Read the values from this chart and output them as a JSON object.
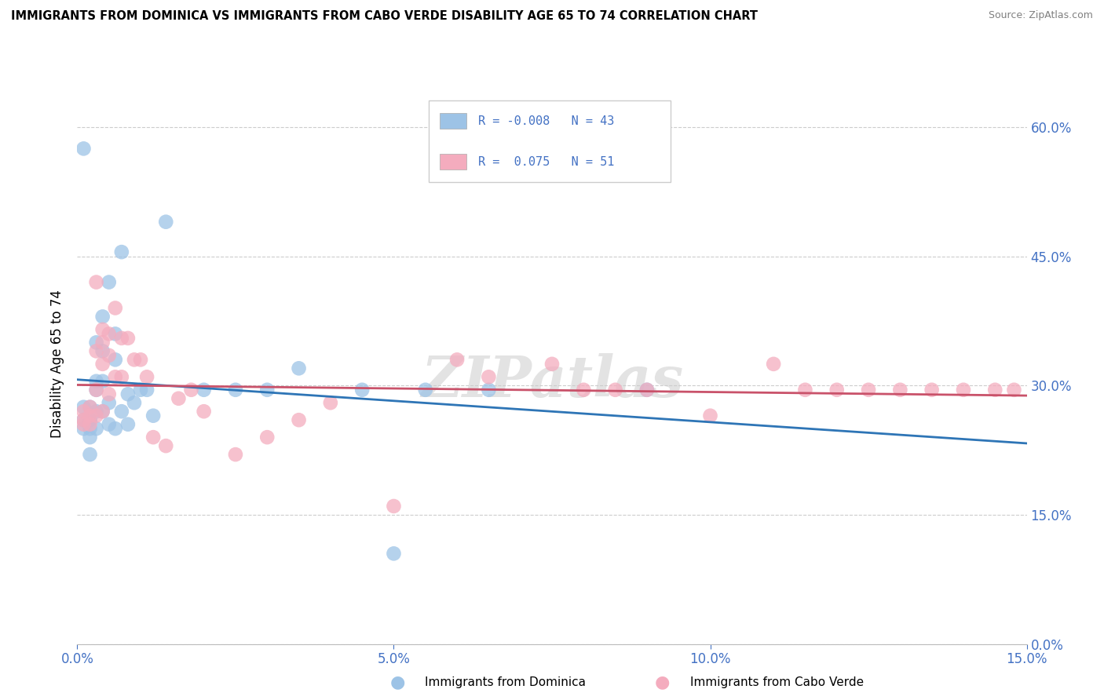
{
  "title": "IMMIGRANTS FROM DOMINICA VS IMMIGRANTS FROM CABO VERDE DISABILITY AGE 65 TO 74 CORRELATION CHART",
  "source": "Source: ZipAtlas.com",
  "xlabel_left": "Immigrants from Dominica",
  "xlabel_right": "Immigrants from Cabo Verde",
  "ylabel": "Disability Age 65 to 74",
  "xmin": 0.0,
  "xmax": 0.15,
  "ymin": 0.0,
  "ymax": 0.65,
  "xticks": [
    0.0,
    0.05,
    0.1,
    0.15
  ],
  "yticks": [
    0.0,
    0.15,
    0.3,
    0.45,
    0.6
  ],
  "ytick_labels": [
    "0.0%",
    "15.0%",
    "30.0%",
    "45.0%",
    "60.0%"
  ],
  "xtick_labels": [
    "0.0%",
    "5.0%",
    "10.0%",
    "15.0%"
  ],
  "color_blue": "#9DC3E6",
  "color_pink": "#F4ACBE",
  "line_color_blue": "#2E75B6",
  "line_color_pink": "#C9526A",
  "watermark": "ZIPatlas",
  "tick_color": "#4472C4",
  "legend_text_color": "#4472C4",
  "dominica_x": [
    0.001,
    0.001,
    0.001,
    0.001,
    0.002,
    0.002,
    0.002,
    0.002,
    0.002,
    0.002,
    0.003,
    0.003,
    0.003,
    0.003,
    0.003,
    0.004,
    0.004,
    0.004,
    0.004,
    0.005,
    0.005,
    0.005,
    0.006,
    0.006,
    0.006,
    0.007,
    0.007,
    0.008,
    0.008,
    0.009,
    0.01,
    0.011,
    0.012,
    0.014,
    0.02,
    0.025,
    0.03,
    0.035,
    0.045,
    0.05,
    0.055,
    0.065,
    0.09
  ],
  "dominica_y": [
    0.575,
    0.275,
    0.25,
    0.26,
    0.26,
    0.275,
    0.26,
    0.25,
    0.24,
    0.22,
    0.35,
    0.305,
    0.295,
    0.27,
    0.25,
    0.38,
    0.34,
    0.305,
    0.27,
    0.42,
    0.28,
    0.255,
    0.36,
    0.33,
    0.25,
    0.455,
    0.27,
    0.29,
    0.255,
    0.28,
    0.295,
    0.295,
    0.265,
    0.49,
    0.295,
    0.295,
    0.295,
    0.32,
    0.295,
    0.105,
    0.295,
    0.295,
    0.295
  ],
  "caboverde_x": [
    0.001,
    0.001,
    0.001,
    0.002,
    0.002,
    0.002,
    0.003,
    0.003,
    0.003,
    0.003,
    0.004,
    0.004,
    0.004,
    0.004,
    0.005,
    0.005,
    0.005,
    0.006,
    0.006,
    0.007,
    0.007,
    0.008,
    0.009,
    0.01,
    0.011,
    0.012,
    0.014,
    0.016,
    0.018,
    0.02,
    0.025,
    0.03,
    0.035,
    0.04,
    0.05,
    0.06,
    0.065,
    0.075,
    0.08,
    0.085,
    0.09,
    0.1,
    0.11,
    0.115,
    0.12,
    0.125,
    0.13,
    0.135,
    0.14,
    0.145,
    0.148
  ],
  "caboverde_y": [
    0.27,
    0.26,
    0.255,
    0.275,
    0.265,
    0.255,
    0.42,
    0.34,
    0.295,
    0.265,
    0.365,
    0.35,
    0.325,
    0.27,
    0.36,
    0.335,
    0.29,
    0.39,
    0.31,
    0.355,
    0.31,
    0.355,
    0.33,
    0.33,
    0.31,
    0.24,
    0.23,
    0.285,
    0.295,
    0.27,
    0.22,
    0.24,
    0.26,
    0.28,
    0.16,
    0.33,
    0.31,
    0.325,
    0.295,
    0.295,
    0.295,
    0.265,
    0.325,
    0.295,
    0.295,
    0.295,
    0.295,
    0.295,
    0.295,
    0.295,
    0.295
  ]
}
